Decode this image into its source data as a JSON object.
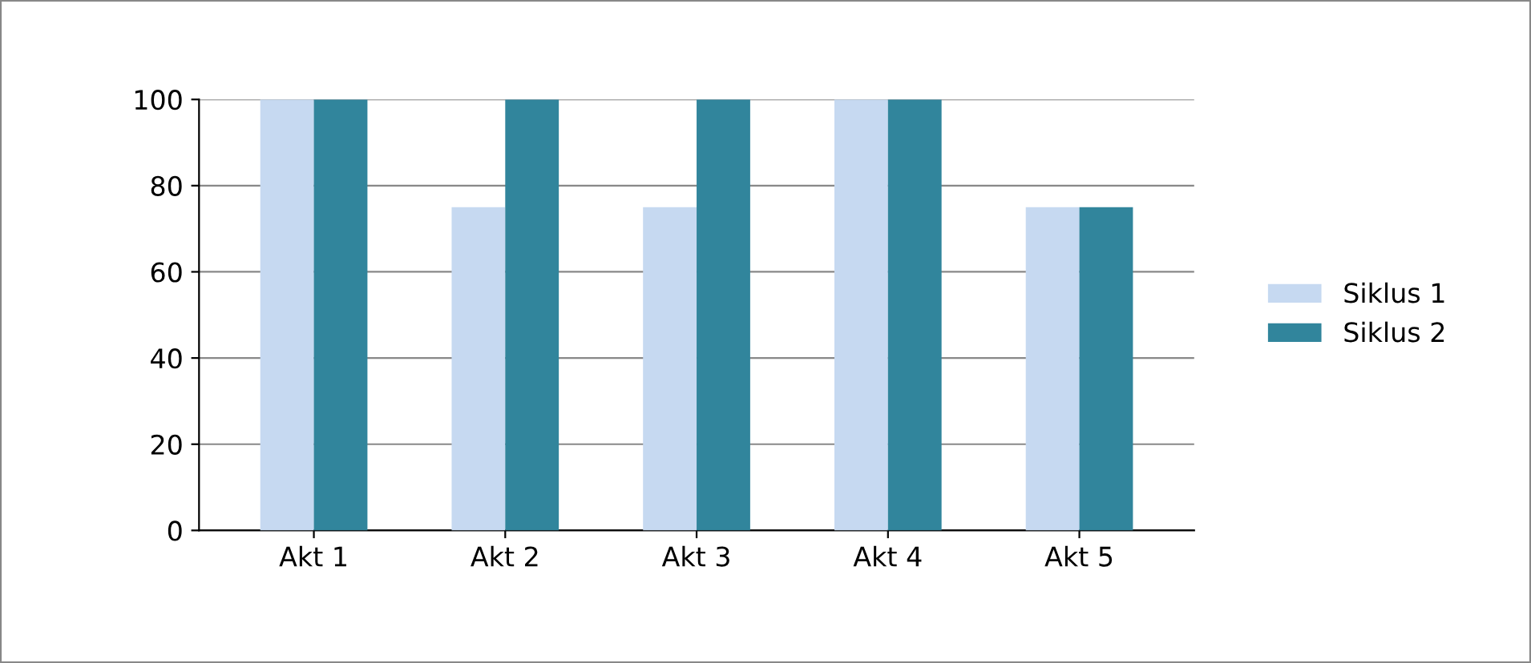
{
  "chart_data": {
    "type": "bar",
    "categories": [
      "Akt 1",
      "Akt 2",
      "Akt 3",
      "Akt 4",
      "Akt 5"
    ],
    "series": [
      {
        "name": "Siklus 1",
        "color": "#c6d9f1",
        "values": [
          100,
          75,
          75,
          100,
          75
        ]
      },
      {
        "name": "Siklus 2",
        "color": "#31859c",
        "values": [
          100,
          100,
          100,
          100,
          75
        ]
      }
    ],
    "ylim": [
      0,
      100
    ],
    "yticks": [
      0,
      20,
      40,
      60,
      80,
      100
    ],
    "grid": "y",
    "legend": "right"
  }
}
